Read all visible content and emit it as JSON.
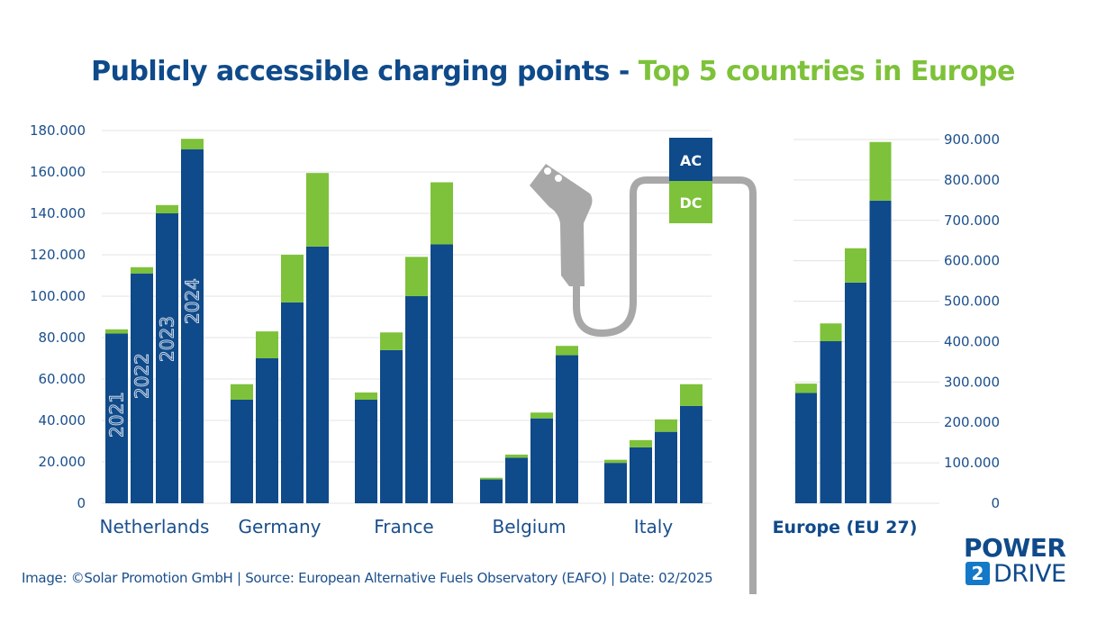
{
  "title": {
    "part1": "Publicly accessible charging points - ",
    "part2": "Top 5 countries in Europe"
  },
  "source": "Image: ©Solar Promotion GmbH | Source: European Alternative Fuels Observatory (EAFO) | Date: 02/2025",
  "logo": {
    "line1": "POWER",
    "badge": "2",
    "line2": "DRIVE"
  },
  "colors": {
    "ac": "#0f4a8a",
    "dc": "#7dc23a",
    "grid": "#e3e3e3",
    "text": "#1b4f8c",
    "plug": "#a8a8a8"
  },
  "legend": {
    "ac": "AC",
    "dc": "DC"
  },
  "chart_data": [
    {
      "type": "bar",
      "stacked": true,
      "ylim": [
        0,
        180000
      ],
      "yticks": [
        "0",
        "20.000",
        "40.000",
        "60.000",
        "80.000",
        "100.000",
        "120.000",
        "140.000",
        "160.000",
        "180.000"
      ],
      "year_labels": [
        "2021",
        "2022",
        "2023",
        "2024"
      ],
      "categories": [
        "Netherlands",
        "Germany",
        "France",
        "Belgium",
        "Italy"
      ],
      "series": [
        {
          "name": "AC",
          "values": [
            [
              82000,
              111000,
              140000,
              171000
            ],
            [
              50000,
              70000,
              97000,
              124000
            ],
            [
              50000,
              74000,
              100000,
              125000
            ],
            [
              11500,
              22000,
              41000,
              71500
            ],
            [
              19500,
              27000,
              34500,
              47000
            ]
          ]
        },
        {
          "name": "DC",
          "values": [
            [
              2000,
              3000,
              4000,
              5000
            ],
            [
              7500,
              13000,
              23000,
              35500
            ],
            [
              3500,
              8500,
              19000,
              30000
            ],
            [
              800,
              1500,
              2800,
              4500
            ],
            [
              1500,
              3500,
              6000,
              10500
            ]
          ]
        }
      ]
    },
    {
      "type": "bar",
      "stacked": true,
      "ylim": [
        0,
        900000
      ],
      "yticks": [
        "0",
        "100.000",
        "200.000",
        "300.000",
        "400.000",
        "500.000",
        "600.000",
        "700.000",
        "800.000",
        "900.000"
      ],
      "categories": [
        "Europe  (EU 27)"
      ],
      "series": [
        {
          "name": "AC",
          "values": [
            [
              273000,
              401000,
              546000,
              749000
            ]
          ]
        },
        {
          "name": "DC",
          "values": [
            [
              23000,
              44000,
              85000,
              145000
            ]
          ]
        }
      ]
    }
  ]
}
